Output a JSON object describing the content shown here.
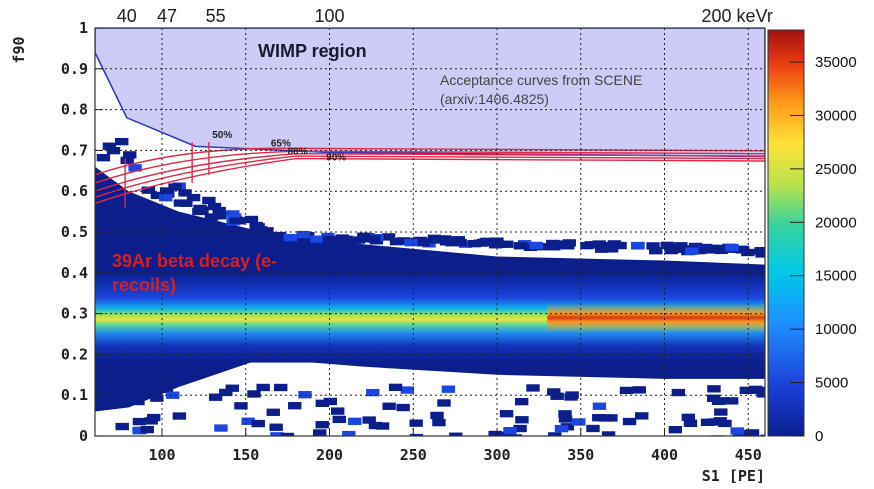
{
  "chart_data": {
    "type": "heatmap",
    "x_label": "S1 [PE]",
    "y_label": "f90",
    "xlim": [
      60,
      460
    ],
    "ylim": [
      0,
      1
    ],
    "x_ticks": [
      100,
      150,
      200,
      250,
      300,
      350,
      400,
      450
    ],
    "y_ticks": [
      0,
      0.1,
      0.2,
      0.3,
      0.4,
      0.5,
      0.6,
      0.7,
      0.8,
      0.9,
      1
    ],
    "top_axis": {
      "labels": [
        "40",
        "47",
        "55",
        "100",
        "200 keVr"
      ],
      "s1_positions": [
        79,
        103,
        132,
        200,
        448
      ]
    },
    "colorbar": {
      "min": 0,
      "max": 38000,
      "ticks": [
        0,
        5000,
        10000,
        15000,
        20000,
        25000,
        30000,
        35000
      ]
    },
    "band": {
      "center_f90": 0.29,
      "description": "39Ar beta decay electron recoil band"
    },
    "wimp_region": {
      "label": "WIMP region",
      "boundary": [
        {
          "s1": 60,
          "f90": 0.94
        },
        {
          "s1": 79,
          "f90": 0.78
        },
        {
          "s1": 120,
          "f90": 0.71
        },
        {
          "s1": 200,
          "f90": 0.695
        },
        {
          "s1": 460,
          "f90": 0.685
        }
      ]
    },
    "acceptance_curves": {
      "note_lines": [
        "Acceptance curves from SCENE",
        "(arxiv:1406.4825)"
      ],
      "labels": [
        "50%",
        "65%",
        "80%",
        "90%"
      ]
    },
    "annotations": {
      "er_line1": "39Ar beta decay (e-",
      "er_line2": "recoils)"
    }
  }
}
